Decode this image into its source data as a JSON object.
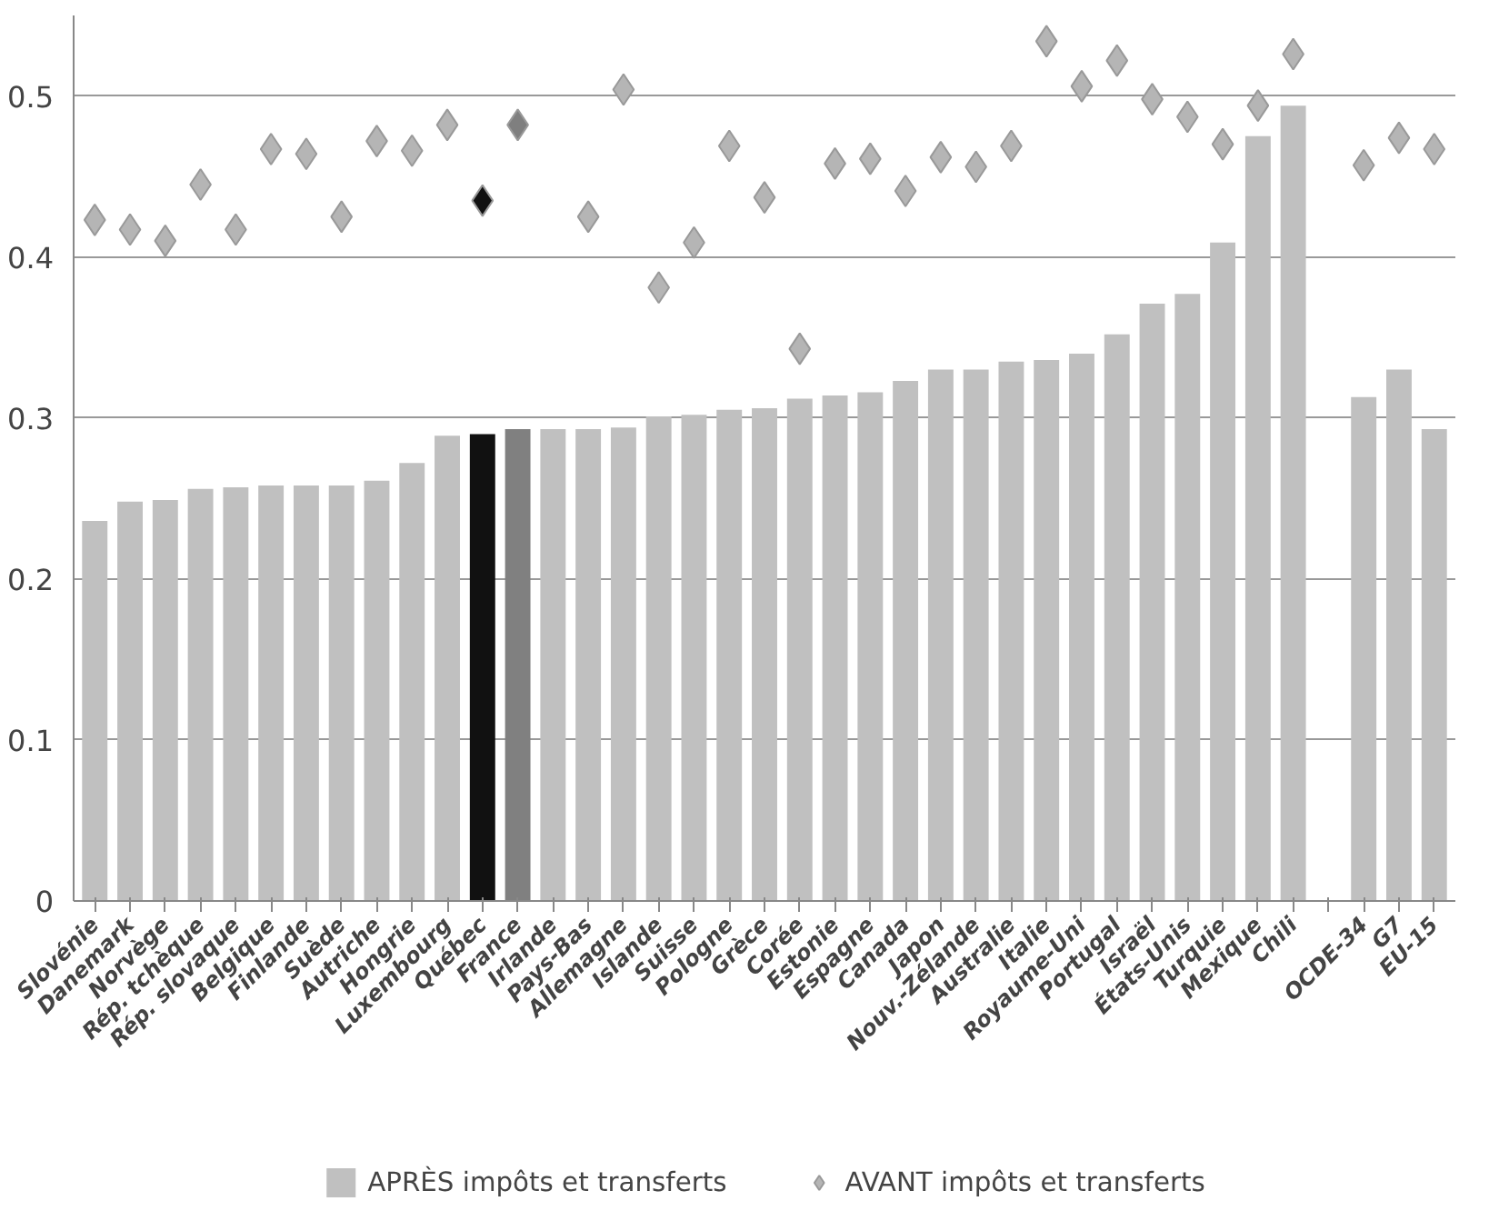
{
  "chart_data": {
    "type": "bar",
    "categories": [
      "Slovénie",
      "Danemark",
      "Norvège",
      "Rép. tchèque",
      "Rép. slovaque",
      "Belgique",
      "Finlande",
      "Suède",
      "Autriche",
      "Hongrie",
      "Luxembourg",
      "Québec",
      "France",
      "Irlande",
      "Pays-Bas",
      "Allemagne",
      "Islande",
      "Suisse",
      "Pologne",
      "Grèce",
      "Corée",
      "Estonie",
      "Espagne",
      "Canada",
      "Japon",
      "Nouv.-Zélande",
      "Australie",
      "Italie",
      "Royaume-Uni",
      "Portugal",
      "Israël",
      "États-Unis",
      "Turquie",
      "Mexique",
      "Chili",
      null,
      "OCDE-34",
      "G7",
      "EU-15"
    ],
    "series": [
      {
        "name": "APRÈS impôts et transferts",
        "color": "#c0c0c0",
        "colors": [
          "#c0c0c0",
          "#c0c0c0",
          "#c0c0c0",
          "#c0c0c0",
          "#c0c0c0",
          "#c0c0c0",
          "#c0c0c0",
          "#c0c0c0",
          "#c0c0c0",
          "#c0c0c0",
          "#c0c0c0",
          "#111111",
          "#808080",
          "#c0c0c0",
          "#c0c0c0",
          "#c0c0c0",
          "#c0c0c0",
          "#c0c0c0",
          "#c0c0c0",
          "#c0c0c0",
          "#c0c0c0",
          "#c0c0c0",
          "#c0c0c0",
          "#c0c0c0",
          "#c0c0c0",
          "#c0c0c0",
          "#c0c0c0",
          "#c0c0c0",
          "#c0c0c0",
          "#c0c0c0",
          "#c0c0c0",
          "#c0c0c0",
          "#c0c0c0",
          "#c0c0c0",
          "#c0c0c0",
          "#c0c0c0",
          "#c0c0c0",
          "#c0c0c0",
          "#c0c0c0"
        ],
        "values": [
          0.236,
          0.248,
          0.249,
          0.256,
          0.257,
          0.258,
          0.258,
          0.258,
          0.261,
          0.272,
          0.289,
          0.29,
          0.293,
          0.293,
          0.293,
          0.294,
          0.301,
          0.302,
          0.305,
          0.306,
          0.312,
          0.314,
          0.316,
          0.323,
          0.33,
          0.33,
          0.335,
          0.336,
          0.34,
          0.352,
          0.371,
          0.377,
          0.409,
          0.475,
          0.494,
          null,
          0.313,
          0.33,
          0.293
        ]
      },
      {
        "name": "AVANT impôts et transferts",
        "type": "scatter",
        "marker": "diamond",
        "color": "#b5b5b5",
        "colors": [
          "#b5b5b5",
          "#b5b5b5",
          "#b5b5b5",
          "#b5b5b5",
          "#b5b5b5",
          "#b5b5b5",
          "#b5b5b5",
          "#b5b5b5",
          "#b5b5b5",
          "#b5b5b5",
          "#b5b5b5",
          "#111111",
          "#7f7f7f",
          "#b5b5b5",
          "#b5b5b5",
          "#b5b5b5",
          "#b5b5b5",
          "#b5b5b5",
          "#b5b5b5",
          "#b5b5b5",
          "#b5b5b5",
          "#b5b5b5",
          "#b5b5b5",
          "#b5b5b5",
          "#b5b5b5",
          "#b5b5b5",
          "#b5b5b5",
          "#b5b5b5",
          "#b5b5b5",
          "#b5b5b5",
          "#b5b5b5",
          "#b5b5b5",
          "#b5b5b5",
          "#b5b5b5",
          "#b5b5b5",
          "#b5b5b5",
          "#b5b5b5",
          "#b5b5b5",
          "#b5b5b5"
        ],
        "values": [
          0.423,
          0.417,
          0.41,
          0.445,
          0.417,
          0.467,
          0.464,
          0.425,
          0.472,
          0.466,
          0.482,
          0.435,
          0.482,
          null,
          0.425,
          0.504,
          0.381,
          0.409,
          0.469,
          0.437,
          0.343,
          0.458,
          0.461,
          0.441,
          0.462,
          0.456,
          0.469,
          0.534,
          0.506,
          0.522,
          0.498,
          0.487,
          0.47,
          0.494,
          0.526,
          null,
          0.457,
          0.474,
          0.467
        ]
      }
    ],
    "ylim": [
      0,
      0.55
    ],
    "yticks": [
      0,
      0.1,
      0.2,
      0.3,
      0.4,
      0.5
    ],
    "grid": "y",
    "legend": "bottom"
  }
}
